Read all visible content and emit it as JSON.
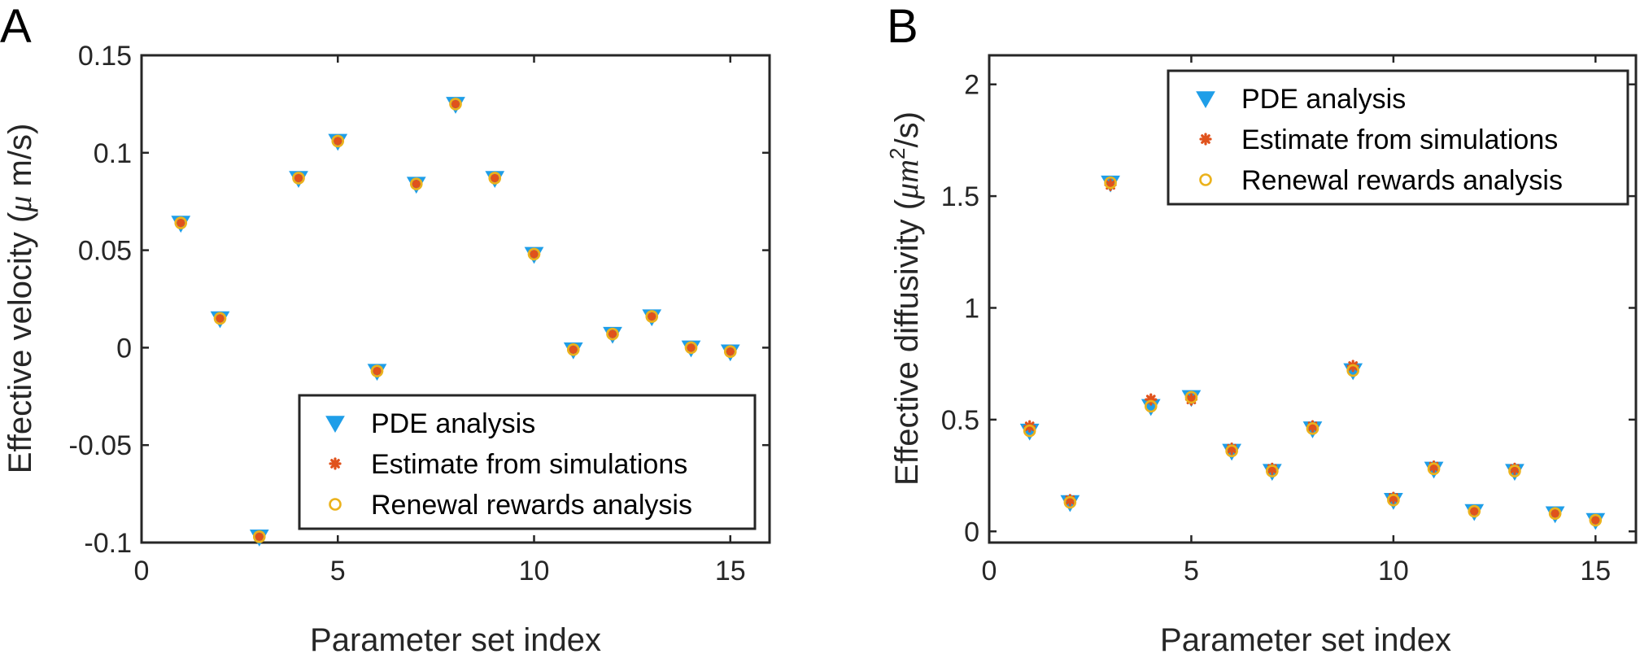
{
  "chart_data": [
    {
      "type": "scatter",
      "panel_label": "A",
      "xlabel": "Parameter set index",
      "ylabel": "Effective velocity",
      "ylabel_units_prefix": "(",
      "ylabel_units_greek": "μ",
      "ylabel_units_suffix": " m/s)",
      "xlim": [
        0,
        16
      ],
      "ylim": [
        -0.1,
        0.15
      ],
      "xticks": [
        0,
        5,
        10,
        15
      ],
      "xtick_labels": [
        "0",
        "5",
        "10",
        "15"
      ],
      "yticks": [
        -0.1,
        -0.05,
        0,
        0.05,
        0.1,
        0.15
      ],
      "ytick_labels": [
        "-0.1",
        "-0.05",
        "0",
        "0.05",
        "0.1",
        "0.15"
      ],
      "grid": false,
      "legend_position": "bottom-right",
      "x": [
        1,
        2,
        3,
        4,
        5,
        6,
        7,
        8,
        9,
        10,
        11,
        12,
        13,
        14,
        15
      ],
      "series": [
        {
          "name": "PDE analysis",
          "marker": "triangle-down",
          "color": "#1f9ee8",
          "values": [
            0.064,
            0.015,
            -0.097,
            0.087,
            0.106,
            -0.012,
            0.084,
            0.125,
            0.087,
            0.048,
            -0.001,
            0.007,
            0.016,
            0.0,
            -0.002
          ]
        },
        {
          "name": "Estimate from simulations",
          "marker": "asterisk",
          "color": "#e0521c",
          "values": [
            0.064,
            0.015,
            -0.097,
            0.087,
            0.106,
            -0.012,
            0.084,
            0.125,
            0.087,
            0.048,
            -0.001,
            0.007,
            0.016,
            0.0,
            -0.002
          ]
        },
        {
          "name": "Renewal rewards analysis",
          "marker": "circle",
          "color": "#ebb21c",
          "values": [
            0.064,
            0.015,
            -0.097,
            0.087,
            0.106,
            -0.012,
            0.084,
            0.125,
            0.087,
            0.048,
            -0.001,
            0.007,
            0.016,
            0.0,
            -0.002
          ]
        }
      ]
    },
    {
      "type": "scatter",
      "panel_label": "B",
      "xlabel": "Parameter set index",
      "ylabel": "Effective diffusivity",
      "ylabel_units_prefix": "(",
      "ylabel_units_greek": "μ",
      "ylabel_units_suffix": "m",
      "ylabel_units_sup": "2",
      "ylabel_units_tail": "/s)",
      "xlim": [
        0,
        16
      ],
      "ylim": [
        -0.05,
        2.13
      ],
      "xticks": [
        0,
        5,
        10,
        15
      ],
      "xtick_labels": [
        "0",
        "5",
        "10",
        "15"
      ],
      "yticks": [
        0,
        0.5,
        1,
        1.5,
        2
      ],
      "ytick_labels": [
        "0",
        "0.5",
        "1",
        "1.5",
        "2"
      ],
      "grid": false,
      "legend_position": "top-right",
      "x": [
        1,
        2,
        3,
        4,
        5,
        6,
        7,
        8,
        9,
        10,
        11,
        12,
        13,
        14,
        15
      ],
      "series": [
        {
          "name": "PDE analysis",
          "marker": "triangle-down",
          "color": "#1f9ee8",
          "values": [
            0.45,
            0.13,
            1.56,
            0.56,
            0.6,
            0.36,
            0.27,
            0.46,
            0.72,
            0.14,
            0.28,
            0.09,
            0.27,
            0.08,
            0.05
          ]
        },
        {
          "name": "Estimate from simulations",
          "marker": "asterisk",
          "color": "#e0521c",
          "values": [
            0.47,
            0.14,
            1.55,
            0.59,
            0.59,
            0.37,
            0.28,
            0.47,
            0.74,
            0.15,
            0.29,
            0.09,
            0.28,
            0.08,
            0.05
          ]
        },
        {
          "name": "Renewal rewards analysis",
          "marker": "circle",
          "color": "#ebb21c",
          "values": [
            0.45,
            0.13,
            1.56,
            0.56,
            0.6,
            0.36,
            0.27,
            0.46,
            0.72,
            0.14,
            0.28,
            0.09,
            0.27,
            0.08,
            0.05
          ]
        }
      ]
    }
  ]
}
